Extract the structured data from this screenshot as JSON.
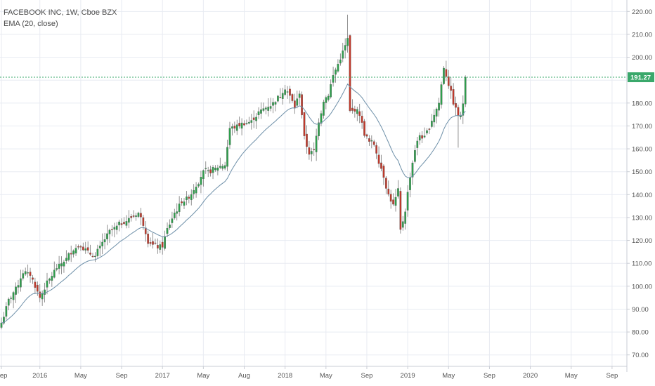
{
  "header": {
    "symbol_line": "FACEBOOK INC, 1W, Cboe BZX",
    "indicator_line": "EMA (20, close)"
  },
  "colors": {
    "up": "#2e9e4c",
    "down": "#c0392b",
    "ema": "#6d8fa8",
    "last_price_line": "#3aa86b",
    "grid": "#e8ebf2",
    "badge": "#3aa86b"
  },
  "chart_data": {
    "type": "candlestick",
    "timeframe": "1W",
    "ylim": [
      65,
      225
    ],
    "y_ticks": [
      220,
      210,
      200,
      190,
      180,
      170,
      160,
      150,
      140,
      130,
      120,
      110,
      100,
      90,
      80,
      70
    ],
    "y_tick_labels": [
      "220.00",
      "210.00",
      "200.00",
      "180.00",
      "170.00",
      "160.00",
      "150.00",
      "140.00",
      "130.00",
      "120.00",
      "110.00",
      "100.00",
      "90.00",
      "80.00",
      "70.00"
    ],
    "x_ticks": [
      {
        "index": 0,
        "label": "Sep"
      },
      {
        "index": 16,
        "label": "2016"
      },
      {
        "index": 33,
        "label": "May"
      },
      {
        "index": 50,
        "label": "Sep"
      },
      {
        "index": 67,
        "label": "2017"
      },
      {
        "index": 84,
        "label": "May"
      },
      {
        "index": 101,
        "label": "Aug"
      },
      {
        "index": 118,
        "label": "2018"
      },
      {
        "index": 135,
        "label": "May"
      },
      {
        "index": 152,
        "label": "Sep"
      },
      {
        "index": 169,
        "label": "2019"
      },
      {
        "index": 186,
        "label": "May"
      },
      {
        "index": 203,
        "label": "Sep"
      },
      {
        "index": 220,
        "label": "2020"
      },
      {
        "index": 237,
        "label": "May"
      },
      {
        "index": 254,
        "label": "Sep"
      }
    ],
    "last_price": 191.27,
    "last_price_label": "191.27",
    "n_slots": 259,
    "keyframes": [
      [
        0,
        84
      ],
      [
        3,
        94
      ],
      [
        6,
        99
      ],
      [
        9,
        106
      ],
      [
        12,
        105
      ],
      [
        14,
        100
      ],
      [
        16,
        95
      ],
      [
        18,
        99
      ],
      [
        20,
        103
      ],
      [
        23,
        108
      ],
      [
        27,
        112
      ],
      [
        30,
        116
      ],
      [
        33,
        118
      ],
      [
        36,
        115
      ],
      [
        39,
        113
      ],
      [
        42,
        119
      ],
      [
        45,
        124
      ],
      [
        48,
        126
      ],
      [
        51,
        128
      ],
      [
        54,
        130
      ],
      [
        57,
        132
      ],
      [
        59,
        127
      ],
      [
        61,
        120
      ],
      [
        63,
        118
      ],
      [
        65,
        117
      ],
      [
        67,
        118
      ],
      [
        69,
        125
      ],
      [
        72,
        132
      ],
      [
        75,
        137
      ],
      [
        78,
        139
      ],
      [
        81,
        144
      ],
      [
        84,
        150
      ],
      [
        87,
        150
      ],
      [
        90,
        152
      ],
      [
        93,
        153
      ],
      [
        95,
        169
      ],
      [
        98,
        170
      ],
      [
        101,
        171
      ],
      [
        104,
        172
      ],
      [
        107,
        176
      ],
      [
        110,
        178
      ],
      [
        113,
        180
      ],
      [
        116,
        183
      ],
      [
        118,
        187
      ],
      [
        120,
        183
      ],
      [
        122,
        178
      ],
      [
        124,
        185
      ],
      [
        126,
        165
      ],
      [
        128,
        158
      ],
      [
        130,
        159
      ],
      [
        132,
        172
      ],
      [
        134,
        181
      ],
      [
        136,
        184
      ],
      [
        138,
        192
      ],
      [
        140,
        197
      ],
      [
        142,
        202
      ],
      [
        144,
        208
      ],
      [
        145,
        176
      ],
      [
        147,
        177
      ],
      [
        149,
        175
      ],
      [
        151,
        167
      ],
      [
        153,
        163
      ],
      [
        155,
        162
      ],
      [
        157,
        155
      ],
      [
        159,
        148
      ],
      [
        161,
        140
      ],
      [
        163,
        135
      ],
      [
        165,
        142
      ],
      [
        166,
        124
      ],
      [
        168,
        133
      ],
      [
        170,
        148
      ],
      [
        172,
        160
      ],
      [
        174,
        166
      ],
      [
        176,
        165
      ],
      [
        178,
        170
      ],
      [
        180,
        175
      ],
      [
        182,
        180
      ],
      [
        184,
        196
      ],
      [
        186,
        188
      ],
      [
        188,
        180
      ],
      [
        190,
        175
      ],
      [
        191,
        174
      ],
      [
        192,
        180
      ],
      [
        193,
        191.27
      ]
    ]
  }
}
